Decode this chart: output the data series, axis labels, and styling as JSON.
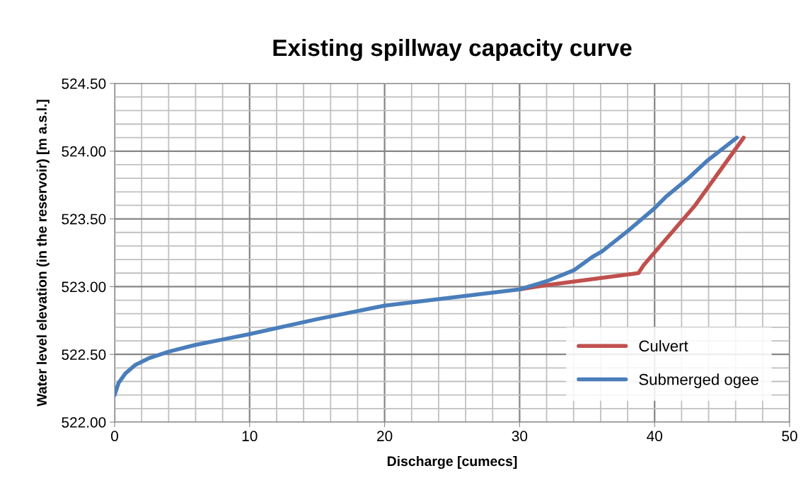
{
  "chart_data": {
    "type": "line",
    "title": "Existing spillway capacity curve",
    "xlabel": "Discharge [cumecs]",
    "ylabel": "Water level elevation (in the reservoir) [m a.s.l.]",
    "xlim": [
      0,
      50
    ],
    "ylim": [
      522.0,
      524.5
    ],
    "xticks": [
      0,
      {
        "value": 2,
        "label": null
      },
      {
        "value": 4,
        "label": null
      },
      {
        "value": 6,
        "label": null
      },
      {
        "value": 8,
        "label": null
      },
      10,
      {
        "value": 12,
        "label": null
      },
      {
        "value": 14,
        "label": null
      },
      {
        "value": 16,
        "label": null
      },
      {
        "value": 18,
        "label": null
      },
      20,
      {
        "value": 22,
        "label": null
      },
      {
        "value": 24,
        "label": null
      },
      {
        "value": 26,
        "label": null
      },
      {
        "value": 28,
        "label": null
      },
      30,
      {
        "value": 32,
        "label": null
      },
      {
        "value": 34,
        "label": null
      },
      {
        "value": 36,
        "label": null
      },
      {
        "value": 38,
        "label": null
      },
      40,
      {
        "value": 42,
        "label": null
      },
      {
        "value": 44,
        "label": null
      },
      {
        "value": 46,
        "label": null
      },
      {
        "value": 48,
        "label": null
      },
      50
    ],
    "yticks": [
      {
        "value": 522.0,
        "label": "522.00"
      },
      {
        "value": 522.1,
        "label": null
      },
      {
        "value": 522.2,
        "label": null
      },
      {
        "value": 522.3,
        "label": null
      },
      {
        "value": 522.4,
        "label": null
      },
      {
        "value": 522.5,
        "label": "522.50"
      },
      {
        "value": 522.6,
        "label": null
      },
      {
        "value": 522.7,
        "label": null
      },
      {
        "value": 522.8,
        "label": null
      },
      {
        "value": 522.9,
        "label": null
      },
      {
        "value": 523.0,
        "label": "523.00"
      },
      {
        "value": 523.1,
        "label": null
      },
      {
        "value": 523.2,
        "label": null
      },
      {
        "value": 523.3,
        "label": null
      },
      {
        "value": 523.4,
        "label": null
      },
      {
        "value": 523.5,
        "label": "523.50"
      },
      {
        "value": 523.6,
        "label": null
      },
      {
        "value": 523.7,
        "label": null
      },
      {
        "value": 523.8,
        "label": null
      },
      {
        "value": 523.9,
        "label": null
      },
      {
        "value": 524.0,
        "label": "524.00"
      },
      {
        "value": 524.1,
        "label": null
      },
      {
        "value": 524.2,
        "label": null
      },
      {
        "value": 524.3,
        "label": null
      },
      {
        "value": 524.4,
        "label": null
      },
      {
        "value": 524.5,
        "label": "524.50"
      }
    ],
    "grid": true,
    "legend": "bottom right",
    "marker": "none",
    "line_style": "solid",
    "series": [
      {
        "name": "Culvert",
        "color": "#c0504d",
        "x": [
          30,
          31.9,
          35,
          38.8,
          39.2,
          43,
          46.6
        ],
        "values": [
          522.98,
          523.01,
          523.05,
          523.1,
          523.16,
          523.6,
          524.1
        ]
      },
      {
        "name": "Submerged ogee",
        "color": "#4a7ebb",
        "x": [
          0,
          0.3,
          0.8,
          1.5,
          2.5,
          4,
          6,
          8,
          10,
          15,
          20,
          25,
          30,
          32,
          34,
          35.4,
          36.1,
          38,
          39.9,
          40.8,
          42.5,
          43.9,
          46.1
        ],
        "values": [
          522.2,
          522.29,
          522.36,
          522.42,
          522.47,
          522.52,
          522.57,
          522.61,
          522.65,
          522.76,
          522.86,
          522.92,
          522.98,
          523.04,
          523.12,
          523.22,
          523.26,
          523.41,
          523.57,
          523.66,
          523.8,
          523.93,
          524.1
        ]
      }
    ]
  }
}
